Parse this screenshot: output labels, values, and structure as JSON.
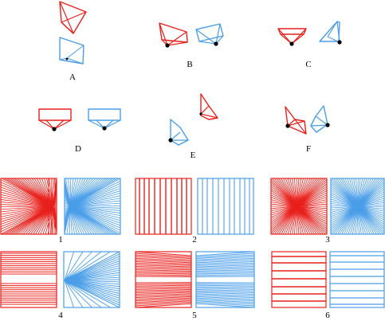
{
  "colors": {
    "red": "#e8201c",
    "blue": "#4a9ee8",
    "dot": "#000000"
  },
  "camera_panels": [
    {
      "label": "A"
    },
    {
      "label": "B"
    },
    {
      "label": "C"
    },
    {
      "label": "D"
    },
    {
      "label": "E"
    },
    {
      "label": "F"
    }
  ],
  "line_panels": [
    {
      "label": "1"
    },
    {
      "label": "2"
    },
    {
      "label": "3"
    },
    {
      "label": "4"
    },
    {
      "label": "5"
    },
    {
      "label": "6"
    }
  ]
}
